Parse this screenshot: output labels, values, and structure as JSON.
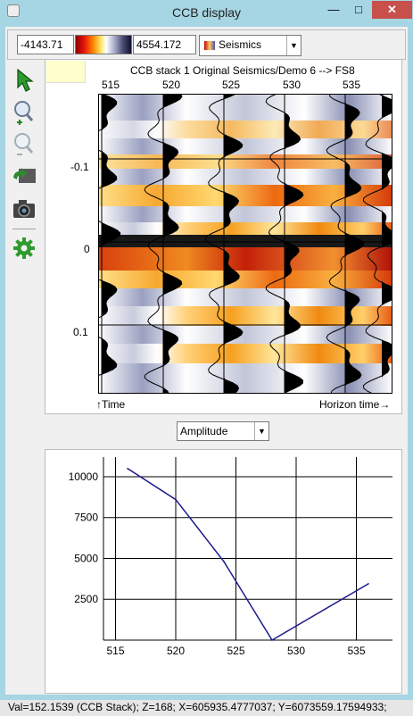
{
  "window": {
    "title": "CCB display"
  },
  "colorbar": {
    "min_value": "-4143.71",
    "max_value": "4554.172",
    "selected": "Seismics"
  },
  "toolbar": {
    "items": [
      {
        "icon": "pointer-arrow-icon"
      },
      {
        "icon": "zoom-in-icon"
      },
      {
        "icon": "zoom-out-icon"
      },
      {
        "icon": "flip-back-icon"
      },
      {
        "icon": "camera-icon"
      },
      {
        "icon": "settings-gear-icon"
      }
    ]
  },
  "seismic_panel": {
    "title": "CCB stack 1 Original Seismics/Demo 6 --> FS8",
    "top_ticks": [
      "515",
      "520",
      "525",
      "530",
      "535"
    ],
    "left_ticks": [
      "-0.1",
      "0",
      "0.1"
    ],
    "bottom_left": "↑Time",
    "bottom_right": "Horizon time→"
  },
  "attribute_select": {
    "value": "Amplitude"
  },
  "chart_data": {
    "type": "line",
    "x": [
      516,
      520,
      524,
      528,
      536
    ],
    "y": [
      10500,
      8600,
      4800,
      0,
      3450
    ],
    "xticks": [
      "515",
      "520",
      "525",
      "530",
      "535"
    ],
    "yticks": [
      "2500",
      "5000",
      "7500",
      "10000"
    ],
    "xlim": [
      514,
      538
    ],
    "ylim": [
      0,
      11200
    ],
    "grid": true,
    "color": "#1a1a8c"
  },
  "status": {
    "text": "Val=152.1539 (CCB Stack);    Z=168; X=605935.4777037;    Y=6073559.17594933;"
  }
}
